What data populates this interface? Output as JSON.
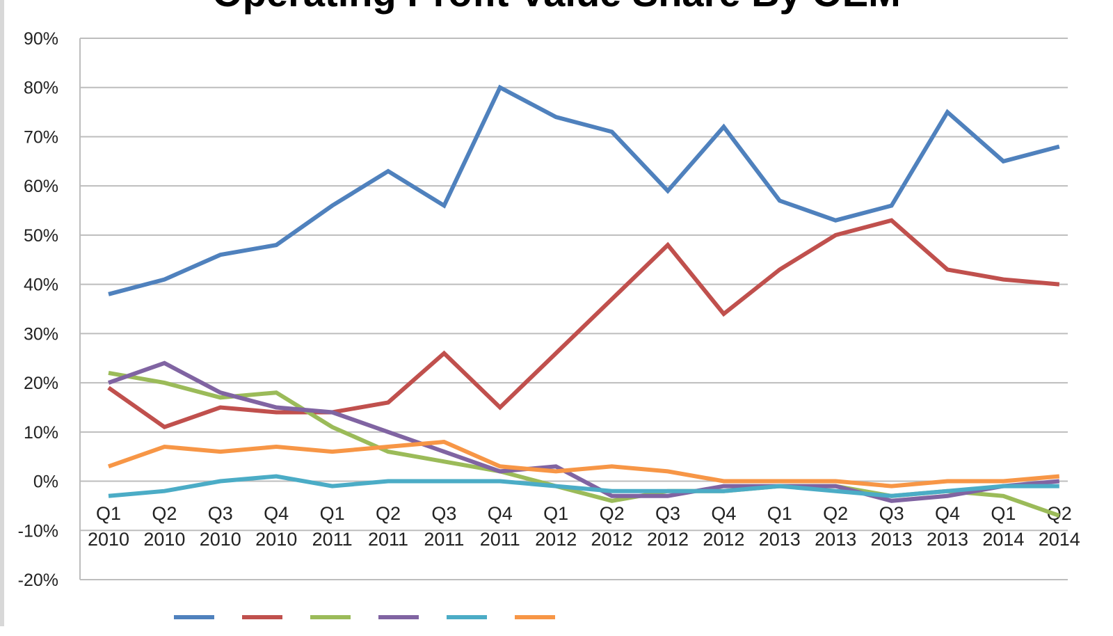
{
  "chart_data": {
    "type": "line",
    "title": "Operating Profit Value Share By OEM",
    "categories": [
      [
        "Q1",
        "2010"
      ],
      [
        "Q2",
        "2010"
      ],
      [
        "Q3",
        "2010"
      ],
      [
        "Q4",
        "2010"
      ],
      [
        "Q1",
        "2011"
      ],
      [
        "Q2",
        "2011"
      ],
      [
        "Q3",
        "2011"
      ],
      [
        "Q4",
        "2011"
      ],
      [
        "Q1",
        "2012"
      ],
      [
        "Q2",
        "2012"
      ],
      [
        "Q3",
        "2012"
      ],
      [
        "Q4",
        "2012"
      ],
      [
        "Q1",
        "2013"
      ],
      [
        "Q2",
        "2013"
      ],
      [
        "Q3",
        "2013"
      ],
      [
        "Q4",
        "2013"
      ],
      [
        "Q1",
        "2014"
      ],
      [
        "Q2",
        "2014"
      ]
    ],
    "ylim": [
      -20,
      90
    ],
    "yticks": [
      90,
      80,
      70,
      60,
      50,
      40,
      30,
      20,
      10,
      0,
      -10,
      -20
    ],
    "ytick_suffix": "%",
    "grid": true,
    "legend_position": "bottom",
    "series": [
      {
        "color": "#4f81bd",
        "values": [
          38,
          41,
          46,
          48,
          56,
          63,
          56,
          80,
          74,
          71,
          59,
          72,
          57,
          53,
          56,
          75,
          65,
          68
        ]
      },
      {
        "color": "#c0504d",
        "values": [
          19,
          11,
          15,
          14,
          14,
          16,
          26,
          15,
          26,
          37,
          48,
          34,
          43,
          50,
          53,
          43,
          41,
          40
        ]
      },
      {
        "color": "#9bbb59",
        "values": [
          22,
          20,
          17,
          18,
          11,
          6,
          4,
          2,
          -1,
          -4,
          -2,
          -2,
          -1,
          -1,
          -3,
          -2,
          -3,
          -7
        ]
      },
      {
        "color": "#8064a2",
        "values": [
          20,
          24,
          18,
          15,
          14,
          10,
          6,
          2,
          3,
          -3,
          -3,
          -1,
          -1,
          -1,
          -4,
          -3,
          -1,
          0
        ]
      },
      {
        "color": "#4bacc6",
        "values": [
          -3,
          -2,
          0,
          1,
          -1,
          0,
          0,
          0,
          -1,
          -2,
          -2,
          -2,
          -1,
          -2,
          -3,
          -2,
          -1,
          -1
        ]
      },
      {
        "color": "#f79646",
        "values": [
          3,
          7,
          6,
          7,
          6,
          7,
          8,
          3,
          2,
          3,
          2,
          0,
          0,
          0,
          -1,
          0,
          0,
          1
        ]
      }
    ]
  }
}
